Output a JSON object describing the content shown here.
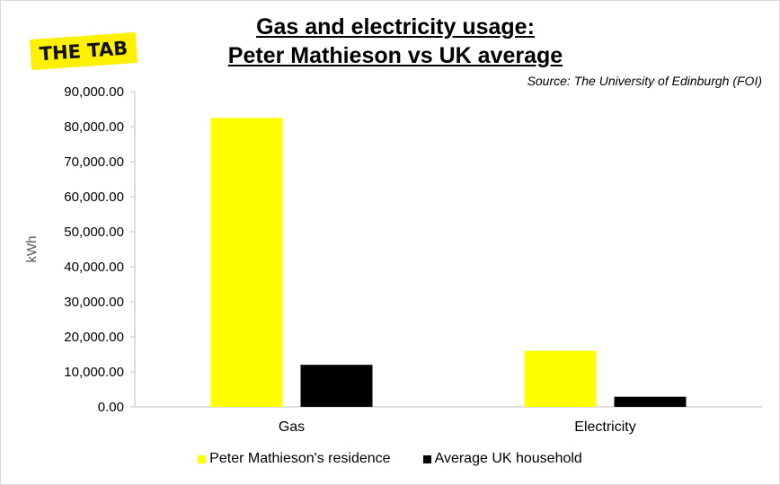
{
  "logo": {
    "text": "THE TAB",
    "color": "#ffef00"
  },
  "title_lines": [
    "Gas and electricity usage:",
    "Peter Mathieson vs UK average"
  ],
  "source": "Source: The University of Edinburgh (FOI)",
  "chart_data": {
    "type": "bar",
    "title": "Gas and electricity usage: Peter Mathieson vs UK average",
    "categories": [
      "Gas",
      "Electricity"
    ],
    "series": [
      {
        "name": "Peter Mathieson's residence",
        "values": [
          82500,
          16000
        ],
        "color": "#ffff00"
      },
      {
        "name": "Average UK household",
        "values": [
          12000,
          2900
        ],
        "color": "#000000"
      }
    ],
    "xlabel": "",
    "ylabel": "kWh",
    "ylim": [
      0,
      90000
    ],
    "yticks": [
      0,
      10000,
      20000,
      30000,
      40000,
      50000,
      60000,
      70000,
      80000,
      90000
    ],
    "ytick_labels": [
      "0.00",
      "10,000.00",
      "20,000.00",
      "30,000.00",
      "40,000.00",
      "50,000.00",
      "60,000.00",
      "70,000.00",
      "80,000.00",
      "90,000.00"
    ],
    "grid": false,
    "legend": "bottom"
  }
}
